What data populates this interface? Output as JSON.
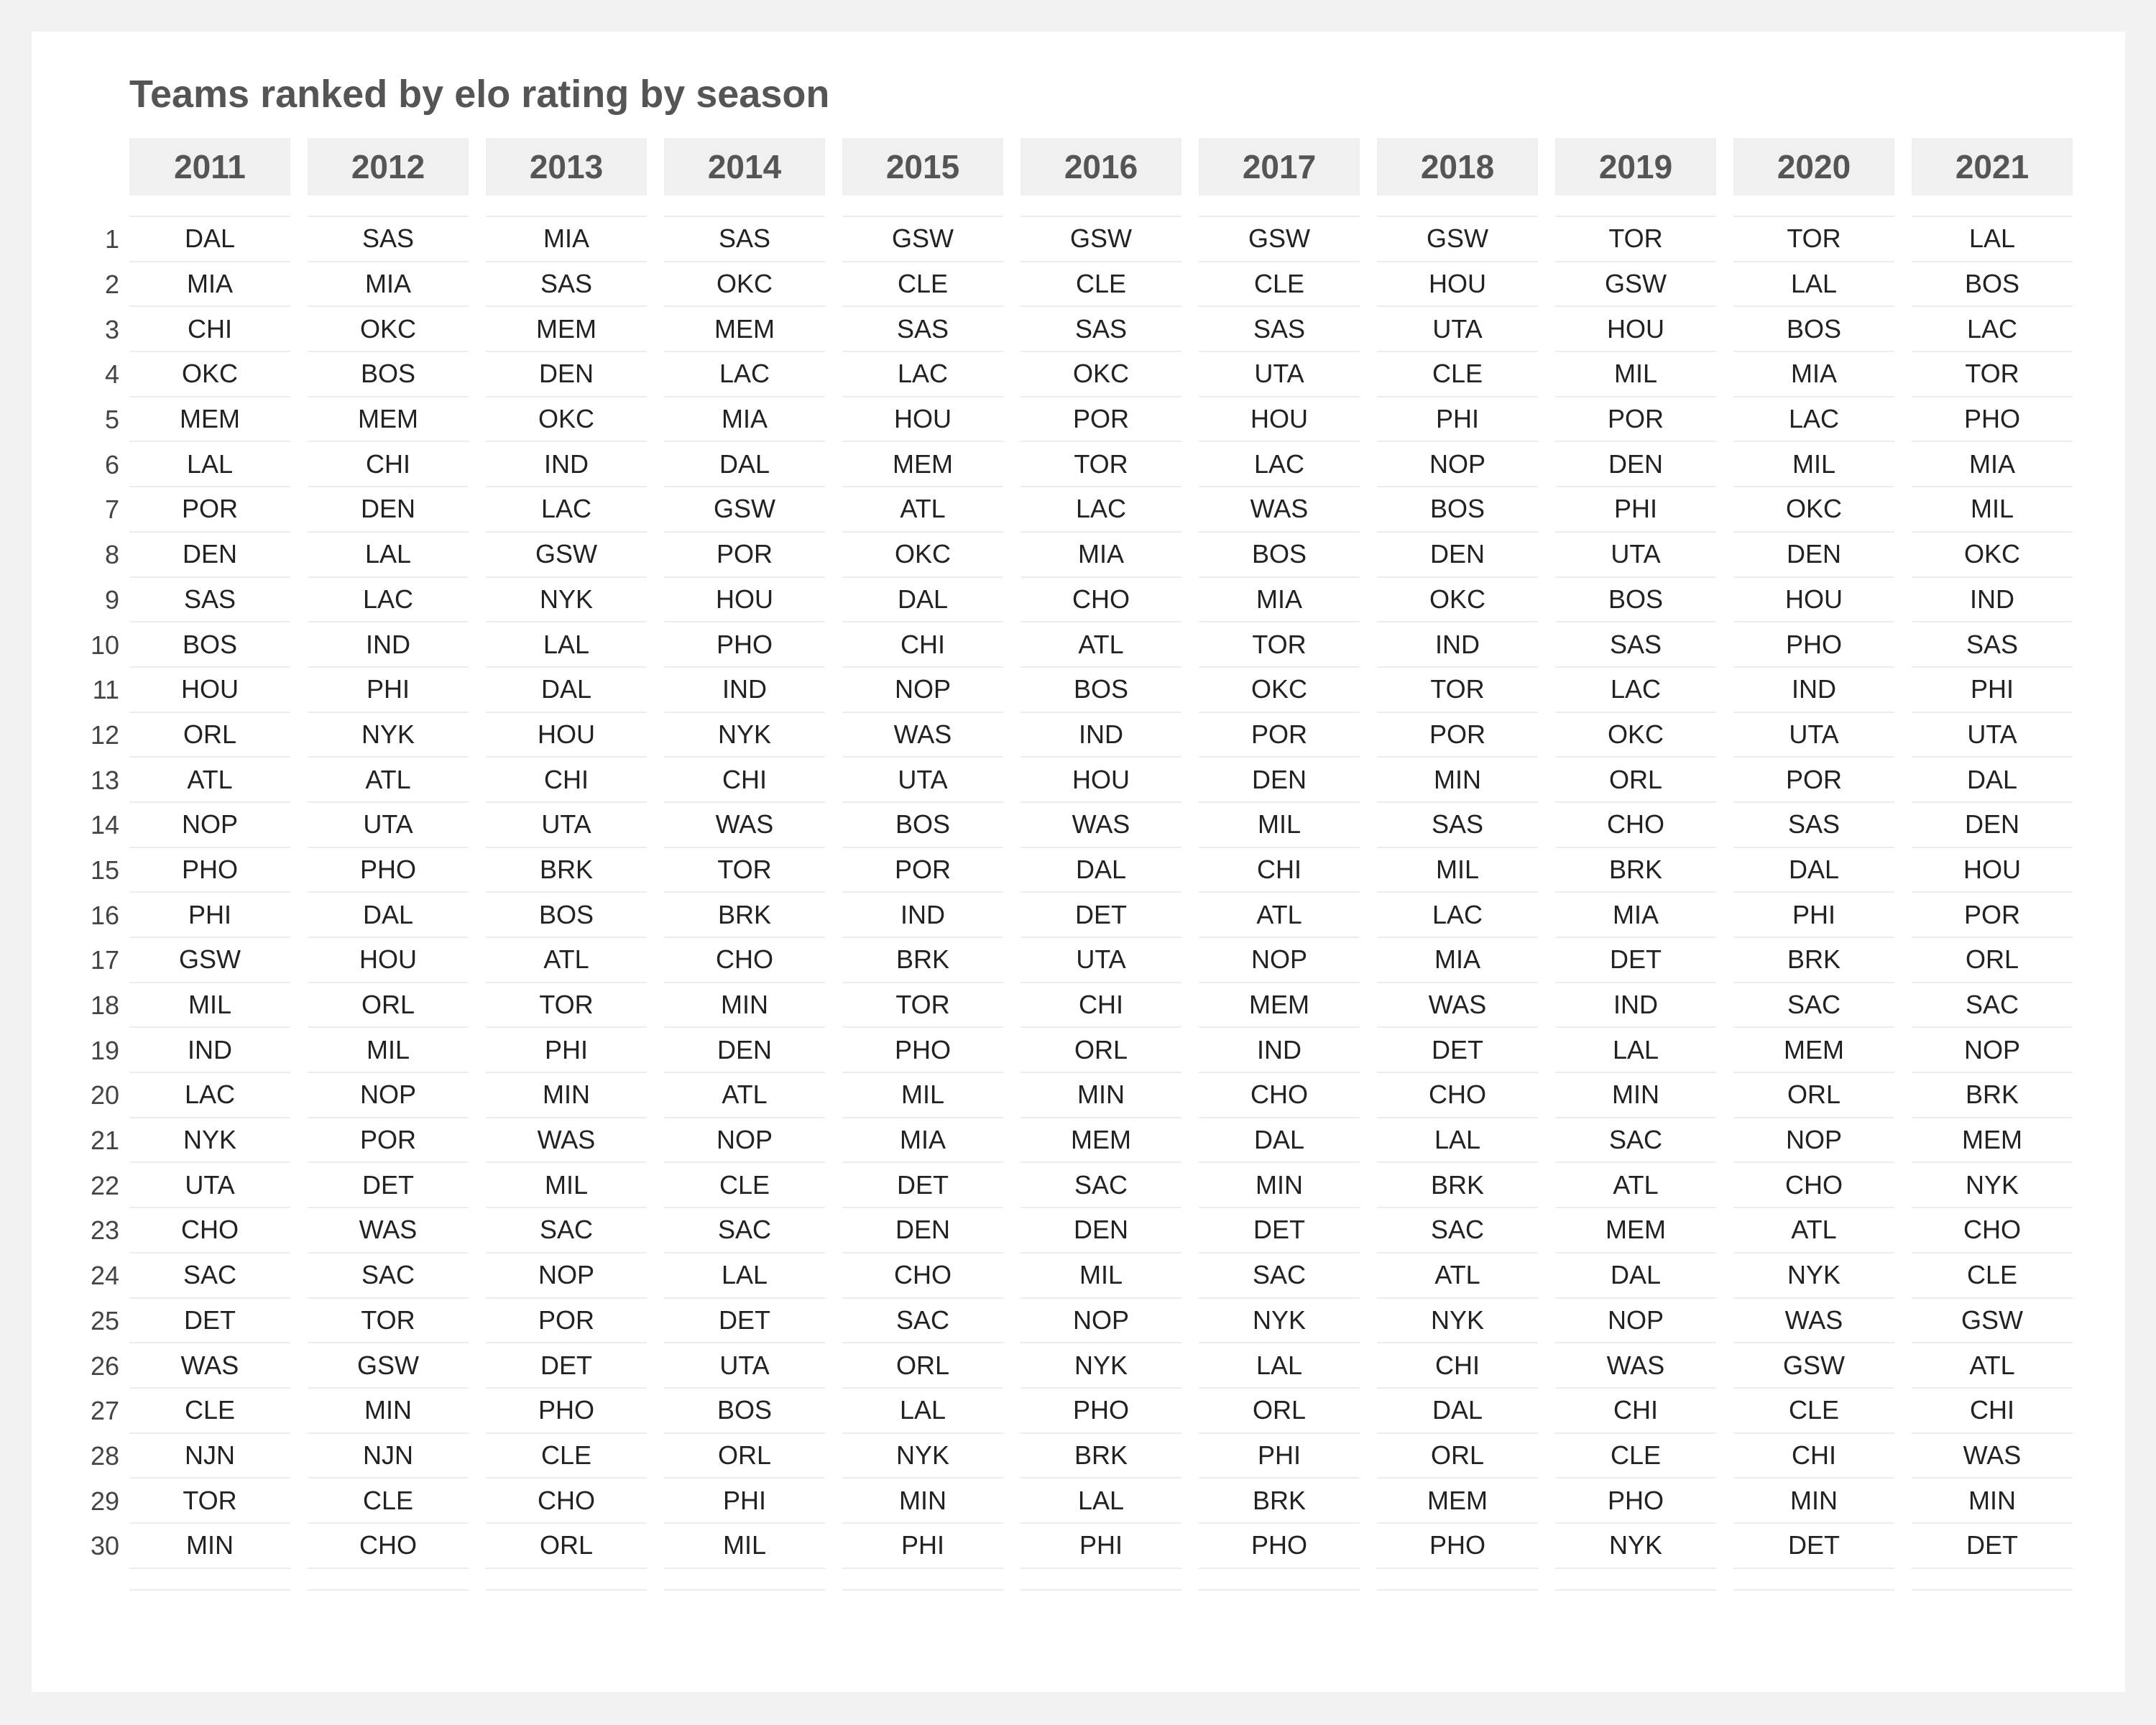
{
  "chart_data": {
    "type": "table",
    "title": "Teams ranked by elo rating by season",
    "ranks": [
      "1",
      "2",
      "3",
      "4",
      "5",
      "6",
      "7",
      "8",
      "9",
      "10",
      "11",
      "12",
      "13",
      "14",
      "15",
      "16",
      "17",
      "18",
      "19",
      "20",
      "21",
      "22",
      "23",
      "24",
      "25",
      "26",
      "27",
      "28",
      "29",
      "30"
    ],
    "seasons": [
      {
        "season": "2011",
        "teams": [
          "DAL",
          "MIA",
          "CHI",
          "OKC",
          "MEM",
          "LAL",
          "POR",
          "DEN",
          "SAS",
          "BOS",
          "HOU",
          "ORL",
          "ATL",
          "NOP",
          "PHO",
          "PHI",
          "GSW",
          "MIL",
          "IND",
          "LAC",
          "NYK",
          "UTA",
          "CHO",
          "SAC",
          "DET",
          "WAS",
          "CLE",
          "NJN",
          "TOR",
          "MIN"
        ]
      },
      {
        "season": "2012",
        "teams": [
          "SAS",
          "MIA",
          "OKC",
          "BOS",
          "MEM",
          "CHI",
          "DEN",
          "LAL",
          "LAC",
          "IND",
          "PHI",
          "NYK",
          "ATL",
          "UTA",
          "PHO",
          "DAL",
          "HOU",
          "ORL",
          "MIL",
          "NOP",
          "POR",
          "DET",
          "WAS",
          "SAC",
          "TOR",
          "GSW",
          "MIN",
          "NJN",
          "CLE",
          "CHO"
        ]
      },
      {
        "season": "2013",
        "teams": [
          "MIA",
          "SAS",
          "MEM",
          "DEN",
          "OKC",
          "IND",
          "LAC",
          "GSW",
          "NYK",
          "LAL",
          "DAL",
          "HOU",
          "CHI",
          "UTA",
          "BRK",
          "BOS",
          "ATL",
          "TOR",
          "PHI",
          "MIN",
          "WAS",
          "MIL",
          "SAC",
          "NOP",
          "POR",
          "DET",
          "PHO",
          "CLE",
          "CHO",
          "ORL"
        ]
      },
      {
        "season": "2014",
        "teams": [
          "SAS",
          "OKC",
          "MEM",
          "LAC",
          "MIA",
          "DAL",
          "GSW",
          "POR",
          "HOU",
          "PHO",
          "IND",
          "NYK",
          "CHI",
          "WAS",
          "TOR",
          "BRK",
          "CHO",
          "MIN",
          "DEN",
          "ATL",
          "NOP",
          "CLE",
          "SAC",
          "LAL",
          "DET",
          "UTA",
          "BOS",
          "ORL",
          "PHI",
          "MIL"
        ]
      },
      {
        "season": "2015",
        "teams": [
          "GSW",
          "CLE",
          "SAS",
          "LAC",
          "HOU",
          "MEM",
          "ATL",
          "OKC",
          "DAL",
          "CHI",
          "NOP",
          "WAS",
          "UTA",
          "BOS",
          "POR",
          "IND",
          "BRK",
          "TOR",
          "PHO",
          "MIL",
          "MIA",
          "DET",
          "DEN",
          "CHO",
          "SAC",
          "ORL",
          "LAL",
          "NYK",
          "MIN",
          "PHI"
        ]
      },
      {
        "season": "2016",
        "teams": [
          "GSW",
          "CLE",
          "SAS",
          "OKC",
          "POR",
          "TOR",
          "LAC",
          "MIA",
          "CHO",
          "ATL",
          "BOS",
          "IND",
          "HOU",
          "WAS",
          "DAL",
          "DET",
          "UTA",
          "CHI",
          "ORL",
          "MIN",
          "MEM",
          "SAC",
          "DEN",
          "MIL",
          "NOP",
          "NYK",
          "PHO",
          "BRK",
          "LAL",
          "PHI"
        ]
      },
      {
        "season": "2017",
        "teams": [
          "GSW",
          "CLE",
          "SAS",
          "UTA",
          "HOU",
          "LAC",
          "WAS",
          "BOS",
          "MIA",
          "TOR",
          "OKC",
          "POR",
          "DEN",
          "MIL",
          "CHI",
          "ATL",
          "NOP",
          "MEM",
          "IND",
          "CHO",
          "DAL",
          "MIN",
          "DET",
          "SAC",
          "NYK",
          "LAL",
          "ORL",
          "PHI",
          "BRK",
          "PHO"
        ]
      },
      {
        "season": "2018",
        "teams": [
          "GSW",
          "HOU",
          "UTA",
          "CLE",
          "PHI",
          "NOP",
          "BOS",
          "DEN",
          "OKC",
          "IND",
          "TOR",
          "POR",
          "MIN",
          "SAS",
          "MIL",
          "LAC",
          "MIA",
          "WAS",
          "DET",
          "CHO",
          "LAL",
          "BRK",
          "SAC",
          "ATL",
          "NYK",
          "CHI",
          "DAL",
          "ORL",
          "MEM",
          "PHO"
        ]
      },
      {
        "season": "2019",
        "teams": [
          "TOR",
          "GSW",
          "HOU",
          "MIL",
          "POR",
          "DEN",
          "PHI",
          "UTA",
          "BOS",
          "SAS",
          "LAC",
          "OKC",
          "ORL",
          "CHO",
          "BRK",
          "MIA",
          "DET",
          "IND",
          "LAL",
          "MIN",
          "SAC",
          "ATL",
          "MEM",
          "DAL",
          "NOP",
          "WAS",
          "CHI",
          "CLE",
          "PHO",
          "NYK"
        ]
      },
      {
        "season": "2020",
        "teams": [
          "TOR",
          "LAL",
          "BOS",
          "MIA",
          "LAC",
          "MIL",
          "OKC",
          "DEN",
          "HOU",
          "PHO",
          "IND",
          "UTA",
          "POR",
          "SAS",
          "DAL",
          "PHI",
          "BRK",
          "SAC",
          "MEM",
          "ORL",
          "NOP",
          "CHO",
          "ATL",
          "NYK",
          "WAS",
          "GSW",
          "CLE",
          "CHI",
          "MIN",
          "DET"
        ]
      },
      {
        "season": "2021",
        "teams": [
          "LAL",
          "BOS",
          "LAC",
          "TOR",
          "PHO",
          "MIA",
          "MIL",
          "OKC",
          "IND",
          "SAS",
          "PHI",
          "UTA",
          "DAL",
          "DEN",
          "HOU",
          "POR",
          "ORL",
          "SAC",
          "NOP",
          "BRK",
          "MEM",
          "NYK",
          "CHO",
          "CLE",
          "GSW",
          "ATL",
          "CHI",
          "WAS",
          "MIN",
          "DET"
        ]
      }
    ]
  }
}
